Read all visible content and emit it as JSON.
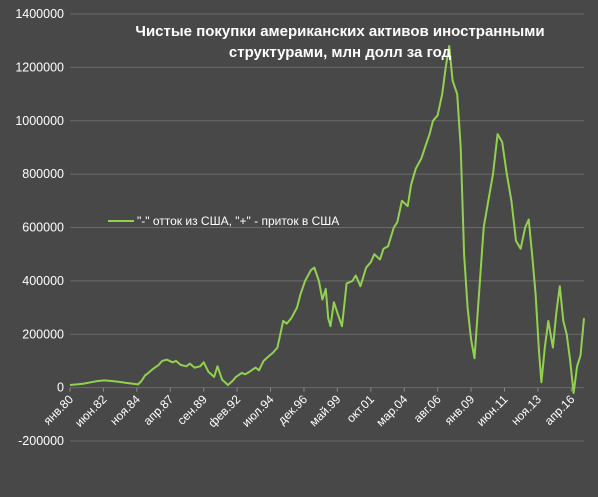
{
  "chart_data": {
    "type": "line",
    "title_lines": [
      "Чистые покупки американских активов иностранными",
      "структурами, млн долл за год"
    ],
    "legend": "\"-\" отток из США, \"+\" - приток в США",
    "legend_position": "left-middle",
    "grid": true,
    "ylim": [
      -200000,
      1400000
    ],
    "yticks": [
      -200000,
      0,
      200000,
      400000,
      600000,
      800000,
      1000000,
      1200000,
      1400000
    ],
    "ytick_labels": [
      "-200000",
      "0",
      "200000",
      "400000",
      "600000",
      "800000",
      "1000000",
      "1200000",
      "1400000"
    ],
    "x_range": [
      "1980-01",
      "2017-03"
    ],
    "xticks": [
      {
        "date": "1980-01",
        "label": "янв.80"
      },
      {
        "date": "1982-06",
        "label": "июн.82"
      },
      {
        "date": "1984-11",
        "label": "ноя.84"
      },
      {
        "date": "1987-04",
        "label": "апр.87"
      },
      {
        "date": "1989-09",
        "label": "сен.89"
      },
      {
        "date": "1992-02",
        "label": "фев.92"
      },
      {
        "date": "1994-07",
        "label": "июл.94"
      },
      {
        "date": "1996-12",
        "label": "дек.96"
      },
      {
        "date": "1999-05",
        "label": "май.99"
      },
      {
        "date": "2001-10",
        "label": "окт.01"
      },
      {
        "date": "2004-03",
        "label": "мар.04"
      },
      {
        "date": "2006-08",
        "label": "авг.06"
      },
      {
        "date": "2009-01",
        "label": "янв.09"
      },
      {
        "date": "2011-06",
        "label": "июн.11"
      },
      {
        "date": "2013-11",
        "label": "ноя.13"
      },
      {
        "date": "2016-04",
        "label": "апр.16"
      }
    ],
    "series": [
      {
        "color": "#92d050",
        "points": [
          [
            "1980-01",
            10000
          ],
          [
            "1980-07",
            12000
          ],
          [
            "1981-01",
            15000
          ],
          [
            "1981-07",
            20000
          ],
          [
            "1982-01",
            25000
          ],
          [
            "1982-07",
            27000
          ],
          [
            "1983-01",
            25000
          ],
          [
            "1983-07",
            22000
          ],
          [
            "1984-01",
            18000
          ],
          [
            "1984-07",
            15000
          ],
          [
            "1984-12",
            12000
          ],
          [
            "1985-03",
            25000
          ],
          [
            "1985-06",
            45000
          ],
          [
            "1985-09",
            55000
          ],
          [
            "1986-01",
            70000
          ],
          [
            "1986-06",
            85000
          ],
          [
            "1986-09",
            100000
          ],
          [
            "1987-01",
            105000
          ],
          [
            "1987-06",
            95000
          ],
          [
            "1987-09",
            100000
          ],
          [
            "1988-01",
            85000
          ],
          [
            "1988-06",
            80000
          ],
          [
            "1988-09",
            90000
          ],
          [
            "1989-01",
            75000
          ],
          [
            "1989-06",
            80000
          ],
          [
            "1989-09",
            95000
          ],
          [
            "1990-01",
            60000
          ],
          [
            "1990-06",
            40000
          ],
          [
            "1990-09",
            80000
          ],
          [
            "1991-01",
            30000
          ],
          [
            "1991-06",
            10000
          ],
          [
            "1991-10",
            25000
          ],
          [
            "1992-01",
            40000
          ],
          [
            "1992-06",
            55000
          ],
          [
            "1992-09",
            50000
          ],
          [
            "1993-01",
            60000
          ],
          [
            "1993-06",
            75000
          ],
          [
            "1993-09",
            65000
          ],
          [
            "1994-01",
            100000
          ],
          [
            "1994-06",
            120000
          ],
          [
            "1994-09",
            130000
          ],
          [
            "1995-01",
            150000
          ],
          [
            "1995-06",
            250000
          ],
          [
            "1995-09",
            240000
          ],
          [
            "1996-01",
            260000
          ],
          [
            "1996-06",
            300000
          ],
          [
            "1996-09",
            350000
          ],
          [
            "1997-01",
            400000
          ],
          [
            "1997-06",
            440000
          ],
          [
            "1997-09",
            450000
          ],
          [
            "1998-01",
            400000
          ],
          [
            "1998-04",
            330000
          ],
          [
            "1998-07",
            370000
          ],
          [
            "1998-09",
            260000
          ],
          [
            "1998-11",
            230000
          ],
          [
            "1999-02",
            320000
          ],
          [
            "1999-05",
            280000
          ],
          [
            "1999-09",
            230000
          ],
          [
            "2000-01",
            390000
          ],
          [
            "2000-06",
            400000
          ],
          [
            "2000-09",
            420000
          ],
          [
            "2001-01",
            380000
          ],
          [
            "2001-06",
            450000
          ],
          [
            "2001-10",
            470000
          ],
          [
            "2002-01",
            500000
          ],
          [
            "2002-06",
            480000
          ],
          [
            "2002-09",
            520000
          ],
          [
            "2003-01",
            530000
          ],
          [
            "2003-06",
            600000
          ],
          [
            "2003-09",
            620000
          ],
          [
            "2004-01",
            700000
          ],
          [
            "2004-06",
            680000
          ],
          [
            "2004-09",
            760000
          ],
          [
            "2005-01",
            820000
          ],
          [
            "2005-06",
            860000
          ],
          [
            "2005-09",
            900000
          ],
          [
            "2006-01",
            950000
          ],
          [
            "2006-04",
            1000000
          ],
          [
            "2006-08",
            1020000
          ],
          [
            "2006-12",
            1100000
          ],
          [
            "2007-03",
            1200000
          ],
          [
            "2007-06",
            1280000
          ],
          [
            "2007-09",
            1150000
          ],
          [
            "2008-01",
            1100000
          ],
          [
            "2008-04",
            900000
          ],
          [
            "2008-07",
            500000
          ],
          [
            "2008-10",
            300000
          ],
          [
            "2009-01",
            180000
          ],
          [
            "2009-04",
            110000
          ],
          [
            "2009-09",
            420000
          ],
          [
            "2009-12",
            600000
          ],
          [
            "2010-04",
            700000
          ],
          [
            "2010-08",
            800000
          ],
          [
            "2010-12",
            950000
          ],
          [
            "2011-04",
            920000
          ],
          [
            "2011-08",
            800000
          ],
          [
            "2011-12",
            700000
          ],
          [
            "2012-04",
            550000
          ],
          [
            "2012-08",
            520000
          ],
          [
            "2012-12",
            600000
          ],
          [
            "2013-03",
            630000
          ],
          [
            "2013-06",
            500000
          ],
          [
            "2013-09",
            350000
          ],
          [
            "2013-12",
            130000
          ],
          [
            "2014-02",
            20000
          ],
          [
            "2014-05",
            150000
          ],
          [
            "2014-08",
            250000
          ],
          [
            "2014-12",
            150000
          ],
          [
            "2015-03",
            280000
          ],
          [
            "2015-06",
            380000
          ],
          [
            "2015-09",
            250000
          ],
          [
            "2015-12",
            200000
          ],
          [
            "2016-03",
            100000
          ],
          [
            "2016-06",
            -20000
          ],
          [
            "2016-09",
            80000
          ],
          [
            "2016-12",
            120000
          ],
          [
            "2017-03",
            260000
          ]
        ]
      }
    ]
  }
}
